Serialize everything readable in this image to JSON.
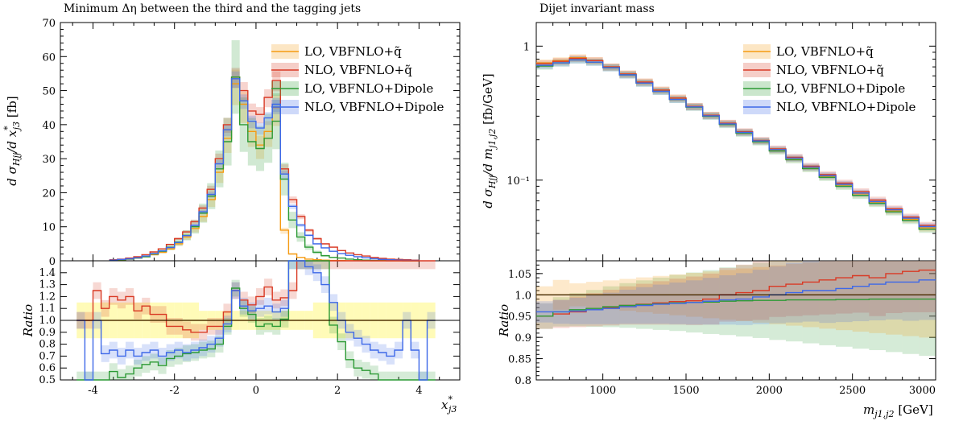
{
  "colors": {
    "lo_qtilde": "#f59b13",
    "nlo_qtilde": "#d93a25",
    "lo_dipole": "#2c9a35",
    "nlo_dipole": "#3d68e8"
  },
  "legend": [
    {
      "label": "LO, VBFNLO+q̃",
      "color": "#f59b13"
    },
    {
      "label": "NLO, VBFNLO+q̃",
      "color": "#d93a25"
    },
    {
      "label": "LO, VBFNLO+Dipole",
      "color": "#2c9a35"
    },
    {
      "label": "NLO, VBFNLO+Dipole",
      "color": "#3d68e8"
    }
  ],
  "chart_data": [
    {
      "type": "line",
      "panel": "main",
      "title": "Minimum Δη between the third and the tagging jets",
      "ylabel": "d σ_Hjj/d x*_j3 [fb]",
      "xlabel": "",
      "xlim": [
        -4.8,
        5.0
      ],
      "ylim": [
        0,
        70
      ],
      "xticks": [
        "-4",
        "-2",
        "0",
        "2",
        "4"
      ],
      "yticks": [
        "0",
        "10",
        "20",
        "30",
        "40",
        "50",
        "60",
        "70"
      ],
      "scale": "linear",
      "bin_edges": [
        -3.6,
        -3.4,
        -3.2,
        -3.0,
        -2.8,
        -2.6,
        -2.4,
        -2.2,
        -2.0,
        -1.8,
        -1.6,
        -1.4,
        -1.2,
        -1.0,
        -0.8,
        -0.6,
        -0.4,
        -0.2,
        0.0,
        0.2,
        0.4,
        0.6,
        0.8,
        1.0,
        1.2,
        1.4,
        1.6,
        1.8,
        2.0,
        2.2,
        2.4,
        2.6,
        2.8,
        3.0,
        3.2,
        3.4,
        3.6,
        3.8,
        4.0
      ],
      "series": [
        {
          "name": "LO, VBFNLO+q̃",
          "values": [
            0.2,
            0.3,
            0.5,
            0.8,
            1.2,
            1.8,
            2.5,
            3.5,
            5,
            7,
            9.5,
            13,
            18,
            26,
            36,
            52,
            46,
            38,
            34,
            38,
            45,
            9,
            2,
            1,
            0.5,
            0.3,
            0.2,
            0.1,
            0.1,
            0.05,
            0.05,
            0.05,
            0.02,
            0.02,
            0.01,
            0.01,
            0.01,
            0.01
          ]
        },
        {
          "name": "NLO, VBFNLO+q̃",
          "values": [
            0.3,
            0.5,
            0.8,
            1.2,
            1.8,
            2.6,
            3.5,
            4.8,
            6.5,
            8.5,
            11.5,
            15.5,
            21,
            30,
            40,
            54,
            50,
            44,
            43,
            48,
            53,
            27,
            18,
            13,
            9,
            6.5,
            5,
            4,
            3,
            2.3,
            1.8,
            1.4,
            1,
            0.7,
            0.5,
            0.4,
            0.3,
            0.2
          ]
        },
        {
          "name": "LO, VBFNLO+Dipole",
          "values": [
            0.2,
            0.3,
            0.5,
            0.8,
            1.2,
            2,
            2.8,
            4,
            5.5,
            7.5,
            10,
            14,
            19,
            27,
            35,
            54,
            40,
            35,
            33,
            36,
            41,
            24,
            12,
            7,
            4,
            2.5,
            1.5,
            1,
            0.8,
            0.5,
            0.3,
            0.2,
            0.1,
            0.1,
            0.05,
            0.05,
            0.02,
            0.02
          ]
        },
        {
          "name": "NLO, VBFNLO+Dipole",
          "values": [
            0.2,
            0.4,
            0.6,
            0.9,
            1.4,
            2.1,
            2.9,
            3.9,
            5.4,
            7.4,
            10.4,
            14.4,
            19.5,
            28.5,
            38.5,
            53.5,
            47,
            41,
            39,
            42,
            46,
            25.5,
            16,
            10.5,
            7.5,
            5,
            3.8,
            2.8,
            2.1,
            1.6,
            1.2,
            0.9,
            0.6,
            0.4,
            0.3,
            0.2,
            0.15,
            0.1
          ]
        }
      ]
    },
    {
      "type": "line",
      "panel": "ratio",
      "ylabel": "Ratio",
      "xlabel": "x*_j3",
      "xlim": [
        -4.8,
        5.0
      ],
      "ylim": [
        0.5,
        1.5
      ],
      "xticks": [
        "-4",
        "-2",
        "0",
        "2",
        "4"
      ],
      "yticks": [
        "0.5",
        "0.6",
        "0.7",
        "0.8",
        "0.9",
        "1.0",
        "1.1",
        "1.2",
        "1.3",
        "1.4"
      ],
      "bin_edges": [
        -4.4,
        -4.2,
        -4.0,
        -3.8,
        -3.6,
        -3.4,
        -3.2,
        -3.0,
        -2.8,
        -2.6,
        -2.4,
        -2.2,
        -2.0,
        -1.8,
        -1.6,
        -1.4,
        -1.2,
        -1.0,
        -0.8,
        -0.6,
        -0.4,
        -0.2,
        0.0,
        0.2,
        0.4,
        0.6,
        0.8,
        1.0,
        1.2,
        1.4,
        1.6,
        1.8,
        2.0,
        2.2,
        2.4,
        2.6,
        2.8,
        3.0,
        3.2,
        3.4,
        3.6,
        3.8,
        4.0,
        4.2,
        4.4
      ],
      "series": [
        {
          "name": "LO, VBFNLO+q̃",
          "values": [
            1.0,
            1.0,
            1.0,
            1.0,
            1.0,
            1.0,
            1.0,
            1.0,
            1.0,
            1.0,
            1.0,
            1.0,
            1.0,
            1.0,
            1.0,
            1.0,
            1.0,
            1.0,
            1.0,
            1.0,
            1.0,
            1.0,
            1.0,
            1.0,
            1.0,
            1.0,
            1.0,
            1.0,
            1.0,
            1.0,
            1.0,
            1.0,
            1.0,
            1.0,
            1.0,
            1.0,
            1.0,
            1.0,
            1.0,
            1.0,
            1.0,
            1.0,
            1.0,
            1.0
          ]
        },
        {
          "name": "NLO, VBFNLO+q̃",
          "values": [
            1.0,
            1.0,
            1.25,
            1.1,
            1.2,
            1.17,
            1.2,
            1.08,
            1.12,
            1.05,
            1.05,
            0.95,
            0.95,
            0.92,
            0.9,
            0.9,
            0.95,
            0.95,
            1.07,
            1.25,
            1.17,
            1.13,
            1.2,
            1.28,
            1.17,
            1.19,
            1.25,
            1.5,
            1.5,
            1.5,
            1.5,
            1.5,
            1.5,
            1.5,
            1.5,
            1.5,
            1.5,
            1.5,
            1.5,
            1.5,
            1.5,
            1.5,
            1.5,
            1.5
          ]
        },
        {
          "name": "LO, VBFNLO+Dipole",
          "values": [
            0.5,
            0.5,
            0.5,
            0.5,
            0.57,
            0.52,
            0.55,
            0.6,
            0.63,
            0.65,
            0.62,
            0.68,
            0.7,
            0.72,
            0.73,
            0.75,
            0.76,
            0.8,
            0.95,
            1.27,
            1.1,
            1.05,
            0.95,
            0.97,
            0.95,
            1.01,
            1.5,
            1.5,
            1.5,
            1.5,
            1.5,
            0.96,
            0.82,
            0.67,
            0.6,
            0.58,
            0.55,
            0.5,
            0.5,
            0.5,
            0.5,
            0.5,
            0.5,
            0.5
          ]
        },
        {
          "name": "NLO, VBFNLO+Dipole",
          "values": [
            1.0,
            0.5,
            1.0,
            0.72,
            0.75,
            0.7,
            0.75,
            0.7,
            0.73,
            0.75,
            0.7,
            0.73,
            0.75,
            0.73,
            0.75,
            0.77,
            0.8,
            0.85,
            0.97,
            1.25,
            1.12,
            1.08,
            1.1,
            1.12,
            1.07,
            1.1,
            1.5,
            1.5,
            1.45,
            1.4,
            1.3,
            1.15,
            1.0,
            0.9,
            0.85,
            0.8,
            0.75,
            0.73,
            0.7,
            0.75,
            1.0,
            0.75,
            0.5,
            1.0
          ]
        }
      ]
    },
    {
      "type": "line",
      "panel": "main",
      "title": "Dijet invariant mass",
      "ylabel": "d σ_Hjj/d m_j1,j2 [fb/GeV]",
      "xlabel": "",
      "xlim": [
        600,
        3000
      ],
      "ylim": [
        0.025,
        1.5
      ],
      "scale": "log",
      "yticks": [
        "10⁻¹",
        "1"
      ],
      "bin_edges": [
        600,
        700,
        800,
        900,
        1000,
        1100,
        1200,
        1300,
        1400,
        1500,
        1600,
        1700,
        1800,
        1900,
        2000,
        2100,
        2200,
        2300,
        2400,
        2500,
        2600,
        2700,
        2800,
        2900,
        3000
      ],
      "series": [
        {
          "name": "LO, VBFNLO+q̃",
          "values": [
            0.75,
            0.78,
            0.82,
            0.78,
            0.7,
            0.62,
            0.54,
            0.47,
            0.41,
            0.355,
            0.305,
            0.265,
            0.228,
            0.196,
            0.168,
            0.145,
            0.124,
            0.107,
            0.092,
            0.079,
            0.068,
            0.059,
            0.051,
            0.044
          ]
        },
        {
          "name": "NLO, VBFNLO+q̃",
          "values": [
            0.74,
            0.77,
            0.81,
            0.78,
            0.7,
            0.62,
            0.54,
            0.47,
            0.41,
            0.355,
            0.305,
            0.266,
            0.23,
            0.198,
            0.171,
            0.148,
            0.127,
            0.11,
            0.095,
            0.082,
            0.071,
            0.061,
            0.053,
            0.046
          ]
        },
        {
          "name": "LO, VBFNLO+Dipole",
          "values": [
            0.71,
            0.75,
            0.79,
            0.76,
            0.69,
            0.61,
            0.53,
            0.46,
            0.4,
            0.35,
            0.3,
            0.26,
            0.224,
            0.193,
            0.165,
            0.142,
            0.122,
            0.105,
            0.09,
            0.077,
            0.067,
            0.058,
            0.05,
            0.043
          ]
        },
        {
          "name": "NLO, VBFNLO+Dipole",
          "values": [
            0.72,
            0.75,
            0.79,
            0.76,
            0.69,
            0.61,
            0.53,
            0.46,
            0.4,
            0.352,
            0.302,
            0.263,
            0.227,
            0.196,
            0.169,
            0.146,
            0.125,
            0.108,
            0.093,
            0.08,
            0.069,
            0.06,
            0.052,
            0.045
          ]
        }
      ]
    },
    {
      "type": "line",
      "panel": "ratio",
      "ylabel": "Ratio",
      "xlabel": "m_j1,j2 [GeV]",
      "xlim": [
        600,
        3000
      ],
      "ylim": [
        0.8,
        1.08
      ],
      "xticks": [
        "1000",
        "1500",
        "2000",
        "2500",
        "3000"
      ],
      "yticks": [
        "0.8",
        "0.85",
        "0.9",
        "0.95",
        "1.0",
        "1.05"
      ],
      "bin_edges": [
        600,
        700,
        800,
        900,
        1000,
        1100,
        1200,
        1300,
        1400,
        1500,
        1600,
        1700,
        1800,
        1900,
        2000,
        2100,
        2200,
        2300,
        2400,
        2500,
        2600,
        2700,
        2800,
        2900,
        3000
      ],
      "series": [
        {
          "name": "LO, VBFNLO+q̃",
          "values": [
            1.0,
            1.0,
            1.0,
            1.0,
            1.0,
            1.0,
            1.0,
            1.0,
            1.0,
            1.0,
            1.0,
            1.0,
            1.0,
            1.0,
            1.0,
            1.0,
            1.0,
            1.0,
            1.0,
            1.0,
            1.0,
            1.0,
            1.0,
            1.0
          ]
        },
        {
          "name": "NLO, VBFNLO+q̃",
          "values": [
            0.95,
            0.955,
            0.96,
            0.965,
            0.97,
            0.975,
            0.978,
            0.981,
            0.984,
            0.986,
            0.99,
            1.0,
            1.005,
            1.01,
            1.02,
            1.025,
            1.03,
            1.035,
            1.04,
            1.045,
            1.04,
            1.05,
            1.055,
            1.058
          ]
        },
        {
          "name": "LO, VBFNLO+Dipole",
          "values": [
            0.95,
            0.96,
            0.965,
            0.968,
            0.972,
            0.975,
            0.977,
            0.979,
            0.981,
            0.982,
            0.983,
            0.985,
            0.986,
            0.987,
            0.987,
            0.988,
            0.988,
            0.988,
            0.989,
            0.989,
            0.99,
            0.99,
            0.99,
            0.99
          ]
        },
        {
          "name": "NLO, VBFNLO+Dipole",
          "values": [
            0.96,
            0.96,
            0.962,
            0.965,
            0.968,
            0.972,
            0.975,
            0.978,
            0.98,
            0.982,
            0.985,
            0.988,
            0.99,
            0.995,
            1.0,
            1.005,
            1.01,
            1.01,
            1.015,
            1.02,
            1.025,
            1.03,
            1.03,
            1.035
          ]
        }
      ]
    }
  ]
}
